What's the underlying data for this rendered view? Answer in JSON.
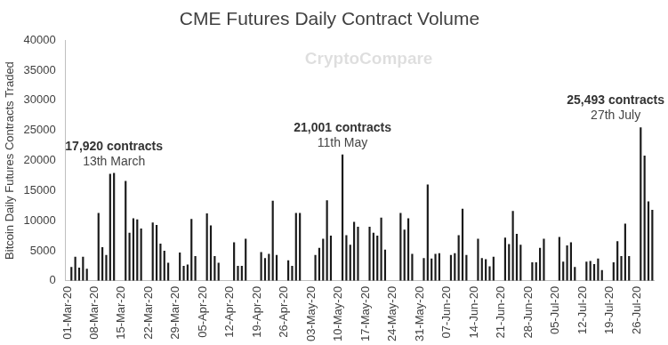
{
  "chart_data": {
    "type": "bar",
    "title": "CME Futures Daily Contract Volume",
    "y_label": "Bitcoin Daily Futures Contracts Traded",
    "watermark": "CryptoCompare",
    "color": "#1a1a1a",
    "grid": false,
    "ylim": [
      0,
      40000
    ],
    "yticks": [
      0,
      5000,
      10000,
      15000,
      20000,
      25000,
      30000,
      35000,
      40000
    ],
    "categories": [
      "01-Mar-20",
      null,
      null,
      null,
      null,
      null,
      null,
      "08-Mar-20",
      null,
      null,
      null,
      null,
      null,
      null,
      "15-Mar-20",
      null,
      null,
      null,
      null,
      null,
      null,
      "22-Mar-20",
      null,
      null,
      null,
      null,
      null,
      null,
      "29-Mar-20",
      null,
      null,
      null,
      null,
      null,
      null,
      "05-Apr-20",
      null,
      null,
      null,
      null,
      null,
      null,
      "12-Apr-20",
      null,
      null,
      null,
      null,
      null,
      null,
      "19-Apr-20",
      null,
      null,
      null,
      null,
      null,
      null,
      "26-Apr-20",
      null,
      null,
      null,
      null,
      null,
      null,
      "03-May-20",
      null,
      null,
      null,
      null,
      null,
      null,
      "10-May-20",
      null,
      null,
      null,
      null,
      null,
      null,
      "17-May-20",
      null,
      null,
      null,
      null,
      null,
      null,
      "24-May-20",
      null,
      null,
      null,
      null,
      null,
      null,
      "31-May-20",
      null,
      null,
      null,
      null,
      null,
      null,
      "07-Jun-20",
      null,
      null,
      null,
      null,
      null,
      null,
      "14-Jun-20",
      null,
      null,
      null,
      null,
      null,
      null,
      "21-Jun-20",
      null,
      null,
      null,
      null,
      null,
      null,
      "28-Jun-20",
      null,
      null,
      null,
      null,
      null,
      null,
      "05-Jul-20",
      null,
      null,
      null,
      null,
      null,
      null,
      "12-Jul-20",
      null,
      null,
      null,
      null,
      null,
      null,
      "19-Jul-20",
      null,
      null,
      null,
      null,
      null,
      null,
      "26-Jul-20",
      null,
      null,
      null,
      null
    ],
    "values": [
      null,
      2300,
      4000,
      2200,
      4000,
      2000,
      null,
      null,
      11300,
      5600,
      4300,
      17800,
      17920,
      null,
      null,
      16600,
      8000,
      10400,
      10200,
      8700,
      null,
      null,
      9700,
      9300,
      6200,
      5000,
      3000,
      null,
      null,
      4700,
      2500,
      2700,
      10300,
      4100,
      null,
      null,
      11200,
      9200,
      4100,
      3000,
      null,
      null,
      null,
      6400,
      2500,
      2500,
      7000,
      null,
      null,
      null,
      4800,
      3800,
      4500,
      13300,
      4300,
      null,
      null,
      3400,
      2500,
      11300,
      11300,
      null,
      null,
      null,
      4300,
      5500,
      7000,
      13400,
      7500,
      null,
      null,
      21001,
      7600,
      6000,
      9800,
      9000,
      null,
      null,
      9000,
      8000,
      7500,
      10500,
      5200,
      null,
      null,
      null,
      11300,
      8500,
      10400,
      4500,
      null,
      null,
      3800,
      16000,
      3700,
      4500,
      4600,
      null,
      null,
      4300,
      4600,
      7600,
      12000,
      4300,
      null,
      null,
      7000,
      3800,
      3600,
      2400,
      4000,
      null,
      null,
      7200,
      6100,
      11600,
      7800,
      6000,
      null,
      null,
      3100,
      3100,
      5500,
      7000,
      null,
      null,
      null,
      7300,
      3200,
      5900,
      6400,
      2300,
      null,
      null,
      3200,
      3300,
      2800,
      3700,
      1800,
      null,
      null,
      3100,
      6600,
      4100,
      9500,
      4100,
      null,
      null,
      25493,
      20800,
      13200,
      11800
    ],
    "annotations": [
      {
        "label": "17,920 contracts",
        "date": "13th March",
        "value": 17920
      },
      {
        "label": "21,001 contracts",
        "date": "11th May",
        "value": 21001
      },
      {
        "label": "25,493 contracts",
        "date": "27th July",
        "value": 25493
      }
    ]
  }
}
